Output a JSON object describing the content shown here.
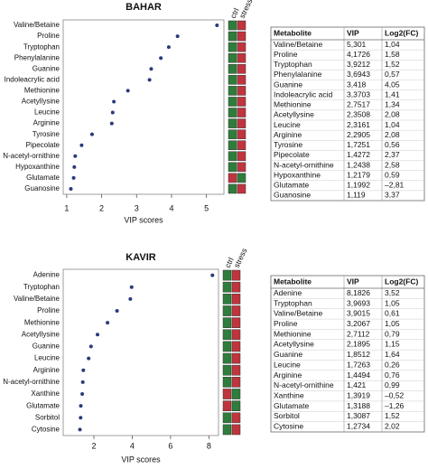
{
  "chart_data": [
    {
      "type": "dot",
      "title": "BAHAR",
      "xlabel": "VIP scores",
      "heatmap_labels": [
        "ctrl",
        "stress"
      ],
      "table_columns": [
        "Metabolite",
        "VIP",
        "Log2(FC)"
      ],
      "categories": [
        "Valine/Betaine",
        "Proline",
        "Tryptophan",
        "Phenylalanine",
        "Guanine",
        "Indoleacrylic acid",
        "Methionine",
        "Acetyllysine",
        "Leucine",
        "Arginine",
        "Tyrosine",
        "Pipecolate",
        "N-acetyl-ornithine",
        "Hypoxanthine",
        "Glutamate",
        "Guanosine"
      ],
      "values": [
        5.301,
        4.1726,
        3.9212,
        3.6943,
        3.418,
        3.3703,
        2.7517,
        2.3508,
        2.3161,
        2.2905,
        1.7251,
        1.4272,
        1.2438,
        1.2179,
        1.1992,
        1.119
      ],
      "value_labels": [
        "5,301",
        "4,1726",
        "3,9212",
        "3,6943",
        "3,418",
        "3,3703",
        "2,7517",
        "2,3508",
        "2,3161",
        "2,2905",
        "1,7251",
        "1,4272",
        "1,2438",
        "1,2179",
        "1,1992",
        "1,119"
      ],
      "fc_values": [
        1.04,
        1.58,
        1.52,
        0.57,
        4.05,
        1.41,
        1.34,
        2.08,
        1.04,
        2.08,
        0.56,
        2.37,
        2.58,
        0.59,
        -2.81,
        3.37
      ],
      "fc_labels": [
        "1,04",
        "1,58",
        "1,52",
        "0,57",
        "4,05",
        "1,41",
        "1,34",
        "2,08",
        "1,04",
        "2,08",
        "0,56",
        "2,37",
        "2,58",
        "0,59",
        "–2,81",
        "3,37"
      ],
      "xlim": [
        0.9,
        5.5
      ],
      "xticks": [
        1,
        2,
        3,
        4,
        5
      ],
      "color": "#2b3a7a",
      "heat_colors": [
        "#2f7d3a",
        "#c0353d"
      ]
    },
    {
      "type": "dot",
      "title": "KAVIR",
      "xlabel": "VIP scores",
      "heatmap_labels": [
        "ctrl",
        "stress"
      ],
      "table_columns": [
        "Metabolite",
        "VIP",
        "Log2(FC)"
      ],
      "categories": [
        "Adenine",
        "Tryptophan",
        "Valine/Betaine",
        "Proline",
        "Methionine",
        "Acetyllysine",
        "Guanine",
        "Leucine",
        "Arginine",
        "N-acetyl-ornithine",
        "Xanthine",
        "Glutamate",
        "Sorbitol",
        "Cytosine"
      ],
      "values": [
        8.1826,
        3.9693,
        3.9015,
        3.2067,
        2.7112,
        2.1895,
        1.8512,
        1.7263,
        1.4494,
        1.421,
        1.3919,
        1.3188,
        1.3087,
        1.2734
      ],
      "value_labels": [
        "8,1826",
        "3,9693",
        "3,9015",
        "3,2067",
        "2,7112",
        "2,1895",
        "1,8512",
        "1,7263",
        "1,4494",
        "1,421",
        "1,3919",
        "1,3188",
        "1,3087",
        "1,2734"
      ],
      "fc_values": [
        3.52,
        1.05,
        0.61,
        1.05,
        0.79,
        1.15,
        1.64,
        0.26,
        0.76,
        0.99,
        -0.52,
        -1.26,
        1.52,
        2.02
      ],
      "fc_labels": [
        "3,52",
        "1,05",
        "0,61",
        "1,05",
        "0,79",
        "1,15",
        "1,64",
        "0,26",
        "0,76",
        "0,99",
        "–0,52",
        "–1,26",
        "1,52",
        "2,02"
      ],
      "xlim": [
        0.4,
        8.5
      ],
      "xticks": [
        2,
        4,
        6,
        8
      ],
      "color": "#2b3a7a",
      "heat_colors": [
        "#2f7d3a",
        "#c0353d"
      ]
    }
  ]
}
